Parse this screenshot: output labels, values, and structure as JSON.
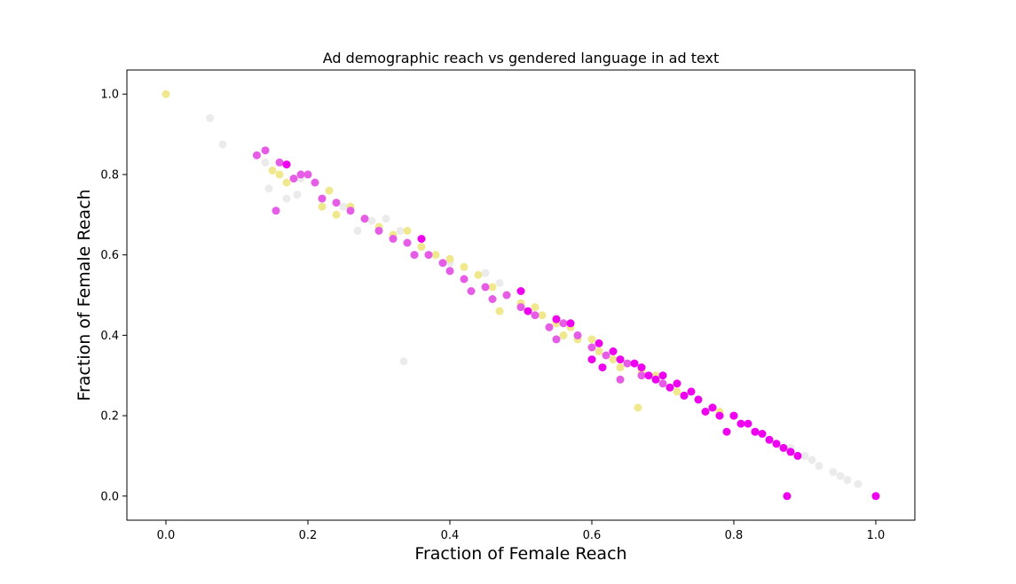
{
  "chart_data": {
    "type": "scatter",
    "title": "Ad demographic reach vs gendered language in ad text",
    "xlabel": "Fraction of Female Reach",
    "ylabel": "Fraction of Female Reach",
    "xlim": [
      -0.055,
      1.055
    ],
    "ylim": [
      -0.06,
      1.06
    ],
    "xticks": [
      "0.0",
      "0.2",
      "0.4",
      "0.6",
      "0.8",
      "1.0"
    ],
    "yticks": [
      "0.0",
      "0.2",
      "0.4",
      "0.6",
      "0.8",
      "1.0"
    ],
    "grid": false,
    "colors": {
      "magenta": "#f000f0",
      "pink": "#e65ce6",
      "yellow": "#f0e88c",
      "gray": "#ebebeb"
    },
    "series": [
      {
        "color": "gray",
        "points": [
          [
            0.062,
            0.94
          ],
          [
            0.08,
            0.875
          ],
          [
            0.14,
            0.83
          ],
          [
            0.145,
            0.765
          ],
          [
            0.17,
            0.74
          ],
          [
            0.185,
            0.75
          ],
          [
            0.19,
            0.79
          ],
          [
            0.25,
            0.72
          ],
          [
            0.27,
            0.66
          ],
          [
            0.29,
            0.685
          ],
          [
            0.31,
            0.69
          ],
          [
            0.33,
            0.66
          ],
          [
            0.335,
            0.335
          ],
          [
            0.4,
            0.58
          ],
          [
            0.45,
            0.555
          ],
          [
            0.47,
            0.53
          ],
          [
            0.5,
            0.51
          ],
          [
            0.55,
            0.445
          ],
          [
            0.88,
            0.12
          ],
          [
            0.9,
            0.1
          ],
          [
            0.91,
            0.09
          ],
          [
            0.92,
            0.075
          ],
          [
            0.94,
            0.06
          ],
          [
            0.95,
            0.05
          ],
          [
            0.96,
            0.04
          ],
          [
            0.975,
            0.03
          ]
        ]
      },
      {
        "color": "yellow",
        "points": [
          [
            0.0,
            1.0
          ],
          [
            0.15,
            0.81
          ],
          [
            0.16,
            0.8
          ],
          [
            0.17,
            0.78
          ],
          [
            0.22,
            0.72
          ],
          [
            0.23,
            0.76
          ],
          [
            0.24,
            0.7
          ],
          [
            0.26,
            0.72
          ],
          [
            0.28,
            0.69
          ],
          [
            0.3,
            0.67
          ],
          [
            0.32,
            0.65
          ],
          [
            0.34,
            0.66
          ],
          [
            0.36,
            0.62
          ],
          [
            0.38,
            0.6
          ],
          [
            0.4,
            0.59
          ],
          [
            0.42,
            0.57
          ],
          [
            0.44,
            0.55
          ],
          [
            0.46,
            0.52
          ],
          [
            0.47,
            0.46
          ],
          [
            0.48,
            0.5
          ],
          [
            0.5,
            0.48
          ],
          [
            0.52,
            0.47
          ],
          [
            0.53,
            0.45
          ],
          [
            0.55,
            0.43
          ],
          [
            0.56,
            0.4
          ],
          [
            0.57,
            0.42
          ],
          [
            0.58,
            0.39
          ],
          [
            0.6,
            0.39
          ],
          [
            0.61,
            0.36
          ],
          [
            0.63,
            0.34
          ],
          [
            0.64,
            0.32
          ],
          [
            0.665,
            0.22
          ],
          [
            0.67,
            0.31
          ],
          [
            0.69,
            0.3
          ],
          [
            0.72,
            0.26
          ],
          [
            0.75,
            0.24
          ],
          [
            0.78,
            0.21
          ]
        ]
      },
      {
        "color": "pink",
        "points": [
          [
            0.128,
            0.848
          ],
          [
            0.14,
            0.86
          ],
          [
            0.155,
            0.71
          ],
          [
            0.16,
            0.83
          ],
          [
            0.18,
            0.79
          ],
          [
            0.19,
            0.8
          ],
          [
            0.2,
            0.8
          ],
          [
            0.21,
            0.78
          ],
          [
            0.22,
            0.74
          ],
          [
            0.24,
            0.73
          ],
          [
            0.26,
            0.71
          ],
          [
            0.28,
            0.69
          ],
          [
            0.3,
            0.66
          ],
          [
            0.32,
            0.64
          ],
          [
            0.34,
            0.63
          ],
          [
            0.35,
            0.6
          ],
          [
            0.37,
            0.6
          ],
          [
            0.39,
            0.58
          ],
          [
            0.4,
            0.56
          ],
          [
            0.42,
            0.54
          ],
          [
            0.43,
            0.51
          ],
          [
            0.45,
            0.52
          ],
          [
            0.46,
            0.49
          ],
          [
            0.48,
            0.5
          ],
          [
            0.5,
            0.47
          ],
          [
            0.52,
            0.45
          ],
          [
            0.54,
            0.42
          ],
          [
            0.55,
            0.39
          ],
          [
            0.56,
            0.43
          ],
          [
            0.58,
            0.4
          ],
          [
            0.6,
            0.37
          ],
          [
            0.62,
            0.35
          ],
          [
            0.64,
            0.29
          ],
          [
            0.65,
            0.33
          ],
          [
            0.67,
            0.3
          ],
          [
            0.7,
            0.28
          ],
          [
            0.73,
            0.25
          ],
          [
            0.77,
            0.22
          ],
          [
            0.8,
            0.2
          ],
          [
            0.83,
            0.16
          ]
        ]
      },
      {
        "color": "magenta",
        "points": [
          [
            0.17,
            0.825
          ],
          [
            0.36,
            0.64
          ],
          [
            0.5,
            0.51
          ],
          [
            0.51,
            0.46
          ],
          [
            0.55,
            0.44
          ],
          [
            0.57,
            0.43
          ],
          [
            0.6,
            0.34
          ],
          [
            0.61,
            0.38
          ],
          [
            0.615,
            0.32
          ],
          [
            0.63,
            0.36
          ],
          [
            0.64,
            0.34
          ],
          [
            0.66,
            0.33
          ],
          [
            0.67,
            0.32
          ],
          [
            0.68,
            0.3
          ],
          [
            0.69,
            0.29
          ],
          [
            0.7,
            0.3
          ],
          [
            0.71,
            0.27
          ],
          [
            0.72,
            0.28
          ],
          [
            0.73,
            0.25
          ],
          [
            0.74,
            0.26
          ],
          [
            0.75,
            0.24
          ],
          [
            0.76,
            0.21
          ],
          [
            0.77,
            0.22
          ],
          [
            0.78,
            0.2
          ],
          [
            0.79,
            0.16
          ],
          [
            0.8,
            0.2
          ],
          [
            0.81,
            0.18
          ],
          [
            0.82,
            0.18
          ],
          [
            0.83,
            0.16
          ],
          [
            0.84,
            0.155
          ],
          [
            0.85,
            0.14
          ],
          [
            0.86,
            0.13
          ],
          [
            0.87,
            0.12
          ],
          [
            0.875,
            0.0
          ],
          [
            0.88,
            0.11
          ],
          [
            0.89,
            0.1
          ],
          [
            1.0,
            0.0
          ]
        ]
      }
    ]
  }
}
